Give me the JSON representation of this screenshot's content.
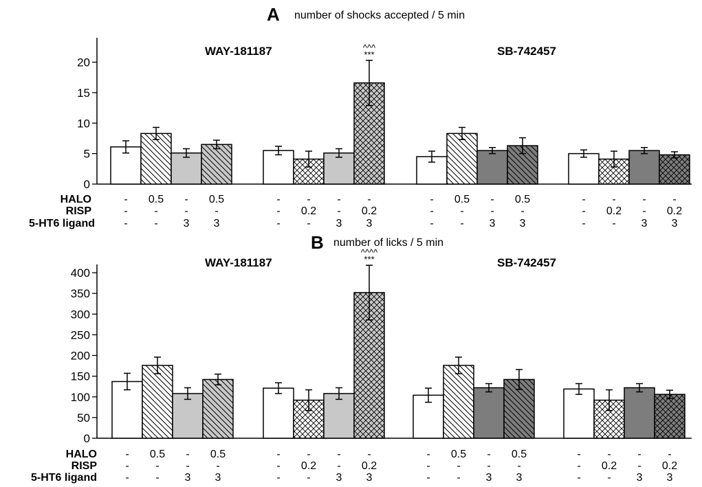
{
  "chart_data": [
    {
      "panel": "A",
      "type": "bar",
      "title": "number of shocks accepted / 5 min",
      "ylim": [
        0,
        24
      ],
      "yticks": [
        0,
        5,
        10,
        15,
        20
      ],
      "group_titles": [
        "WAY-181187",
        "SB-742457"
      ],
      "row_labels": [
        "HALO",
        "RISP",
        "5-HT6 ligand"
      ],
      "groups": [
        {
          "bars": [
            {
              "value": 6.1,
              "err": 1.0,
              "fill": "white",
              "halo": "-",
              "risp": "-",
              "ligand": "-"
            },
            {
              "value": 8.3,
              "err": 1.0,
              "fill": "hatch",
              "halo": "0.5",
              "risp": "-",
              "ligand": "-"
            },
            {
              "value": 5.1,
              "err": 0.7,
              "fill": "lightgray",
              "halo": "-",
              "risp": "-",
              "ligand": "3"
            },
            {
              "value": 6.5,
              "err": 0.7,
              "fill": "lightgray-hatch",
              "halo": "0.5",
              "risp": "-",
              "ligand": "3"
            }
          ]
        },
        {
          "bars": [
            {
              "value": 5.5,
              "err": 0.7,
              "fill": "white",
              "halo": "-",
              "risp": "-",
              "ligand": "-"
            },
            {
              "value": 4.1,
              "err": 1.3,
              "fill": "crosshatch",
              "halo": "-",
              "risp": "0.2",
              "ligand": "-"
            },
            {
              "value": 5.1,
              "err": 0.7,
              "fill": "lightgray",
              "halo": "-",
              "risp": "-",
              "ligand": "3"
            },
            {
              "value": 16.6,
              "err": 3.7,
              "fill": "lightgray-crosshatch",
              "halo": "-",
              "risp": "0.2",
              "ligand": "3",
              "annotation": [
                "^^^",
                "***"
              ]
            }
          ]
        },
        {
          "bars": [
            {
              "value": 4.5,
              "err": 0.9,
              "fill": "white",
              "halo": "-",
              "risp": "-",
              "ligand": "-"
            },
            {
              "value": 8.3,
              "err": 1.0,
              "fill": "hatch",
              "halo": "0.5",
              "risp": "-",
              "ligand": "-"
            },
            {
              "value": 5.5,
              "err": 0.5,
              "fill": "darkgray",
              "halo": "-",
              "risp": "-",
              "ligand": "3"
            },
            {
              "value": 6.3,
              "err": 1.3,
              "fill": "darkgray-hatch",
              "halo": "0.5",
              "risp": "-",
              "ligand": "3"
            }
          ]
        },
        {
          "bars": [
            {
              "value": 5.0,
              "err": 0.6,
              "fill": "white",
              "halo": "-",
              "risp": "-",
              "ligand": "-"
            },
            {
              "value": 4.1,
              "err": 1.3,
              "fill": "crosshatch",
              "halo": "-",
              "risp": "0.2",
              "ligand": "-"
            },
            {
              "value": 5.5,
              "err": 0.5,
              "fill": "darkgray",
              "halo": "-",
              "risp": "-",
              "ligand": "3"
            },
            {
              "value": 4.8,
              "err": 0.5,
              "fill": "darkgray-crosshatch",
              "halo": "-",
              "risp": "0.2",
              "ligand": "3"
            }
          ]
        }
      ]
    },
    {
      "panel": "B",
      "type": "bar",
      "title": "number of licks / 5 min",
      "ylim": [
        0,
        420
      ],
      "yticks": [
        0,
        50,
        100,
        150,
        200,
        250,
        300,
        350,
        400
      ],
      "group_titles": [
        "WAY-181187",
        "SB-742457"
      ],
      "row_labels": [
        "HALO",
        "RISP",
        "5-HT6 ligand"
      ],
      "groups": [
        {
          "bars": [
            {
              "value": 137,
              "err": 20,
              "fill": "white",
              "halo": "-",
              "risp": "-",
              "ligand": "-"
            },
            {
              "value": 176,
              "err": 20,
              "fill": "hatch",
              "halo": "0.5",
              "risp": "-",
              "ligand": "-"
            },
            {
              "value": 108,
              "err": 14,
              "fill": "lightgray",
              "halo": "-",
              "risp": "-",
              "ligand": "3"
            },
            {
              "value": 142,
              "err": 13,
              "fill": "lightgray-hatch",
              "halo": "0.5",
              "risp": "-",
              "ligand": "3"
            }
          ]
        },
        {
          "bars": [
            {
              "value": 121,
              "err": 13,
              "fill": "white",
              "halo": "-",
              "risp": "-",
              "ligand": "-"
            },
            {
              "value": 92,
              "err": 25,
              "fill": "crosshatch",
              "halo": "-",
              "risp": "0.2",
              "ligand": "-"
            },
            {
              "value": 108,
              "err": 14,
              "fill": "lightgray",
              "halo": "-",
              "risp": "-",
              "ligand": "3"
            },
            {
              "value": 352,
              "err": 66,
              "fill": "lightgray-crosshatch",
              "halo": "-",
              "risp": "0.2",
              "ligand": "3",
              "annotation": [
                "^^^^",
                "***"
              ]
            }
          ]
        },
        {
          "bars": [
            {
              "value": 104,
              "err": 17,
              "fill": "white",
              "halo": "-",
              "risp": "-",
              "ligand": "-"
            },
            {
              "value": 176,
              "err": 20,
              "fill": "hatch",
              "halo": "0.5",
              "risp": "-",
              "ligand": "-"
            },
            {
              "value": 122,
              "err": 10,
              "fill": "darkgray",
              "halo": "-",
              "risp": "-",
              "ligand": "3"
            },
            {
              "value": 142,
              "err": 24,
              "fill": "darkgray-hatch",
              "halo": "0.5",
              "risp": "-",
              "ligand": "3"
            }
          ]
        },
        {
          "bars": [
            {
              "value": 119,
              "err": 13,
              "fill": "white",
              "halo": "-",
              "risp": "-",
              "ligand": "-"
            },
            {
              "value": 92,
              "err": 25,
              "fill": "crosshatch",
              "halo": "-",
              "risp": "0.2",
              "ligand": "-"
            },
            {
              "value": 122,
              "err": 10,
              "fill": "darkgray",
              "halo": "-",
              "risp": "-",
              "ligand": "3"
            },
            {
              "value": 106,
              "err": 10,
              "fill": "darkgray-crosshatch",
              "halo": "-",
              "risp": "0.2",
              "ligand": "3"
            }
          ]
        }
      ]
    }
  ],
  "colors": {
    "bar_outline": "#000000",
    "white_fill": "#ffffff",
    "light_gray": "#c8c8c8",
    "dark_gray": "#7d7d7d"
  }
}
